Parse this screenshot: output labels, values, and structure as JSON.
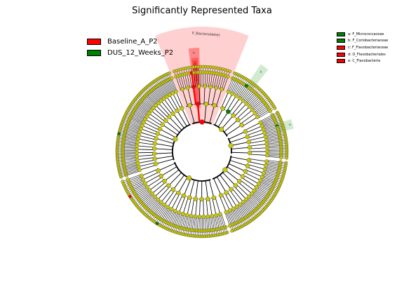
{
  "title": "Significantly Represented Taxa",
  "legend_groups": [
    {
      "label": "Baseline_A_P2",
      "color": "#ff0000"
    },
    {
      "label": "DUS_12_Weeks_P2",
      "color": "#008000"
    }
  ],
  "clade_legend": [
    {
      "label": "a: F_Micrococcaceae",
      "color": "#008000"
    },
    {
      "label": "b: F_Coriobacteriaceae",
      "color": "#008000"
    },
    {
      "label": "c: F_Flavobacteriaceae",
      "color": "#ff0000"
    },
    {
      "label": "d: O_Flavobacteriales",
      "color": "#ff0000"
    },
    {
      "label": "e: C_Flavobacteria",
      "color": "#ff0000"
    }
  ],
  "clade_labels": {
    "phylum": "P_Bacteroidetes",
    "e": "e",
    "d": "d",
    "c": "c",
    "b": "b",
    "a": "a"
  },
  "colors": {
    "neutral_node": "#c8c80a",
    "enriched_baseline": "#ff0000",
    "enriched_dus": "#008000",
    "baseline_shade": "#ffc8c8",
    "dus_shade": "#c8e8c8"
  }
}
